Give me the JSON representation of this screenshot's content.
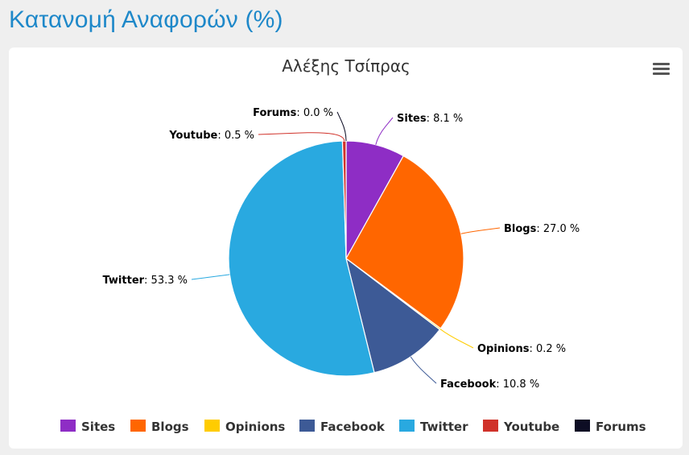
{
  "page": {
    "title": "Κατανομή Αναφορών (%)"
  },
  "chart_data": {
    "type": "pie",
    "title": "Αλέξης Τσίπρας",
    "value_suffix": " %",
    "slices": [
      {
        "name": "Sites",
        "value": 8.1,
        "color": "#8e2dc5"
      },
      {
        "name": "Blogs",
        "value": 27.0,
        "color": "#ff6600"
      },
      {
        "name": "Opinions",
        "value": 0.2,
        "color": "#ffcc00"
      },
      {
        "name": "Facebook",
        "value": 10.8,
        "color": "#3d5a96"
      },
      {
        "name": "Twitter",
        "value": 53.3,
        "color": "#29a9e0"
      },
      {
        "name": "Youtube",
        "value": 0.5,
        "color": "#d0322a"
      },
      {
        "name": "Forums",
        "value": 0.0,
        "color": "#0d0d24"
      }
    ],
    "legend_position": "bottom"
  },
  "menu": {
    "icon": "hamburger-menu-icon"
  }
}
